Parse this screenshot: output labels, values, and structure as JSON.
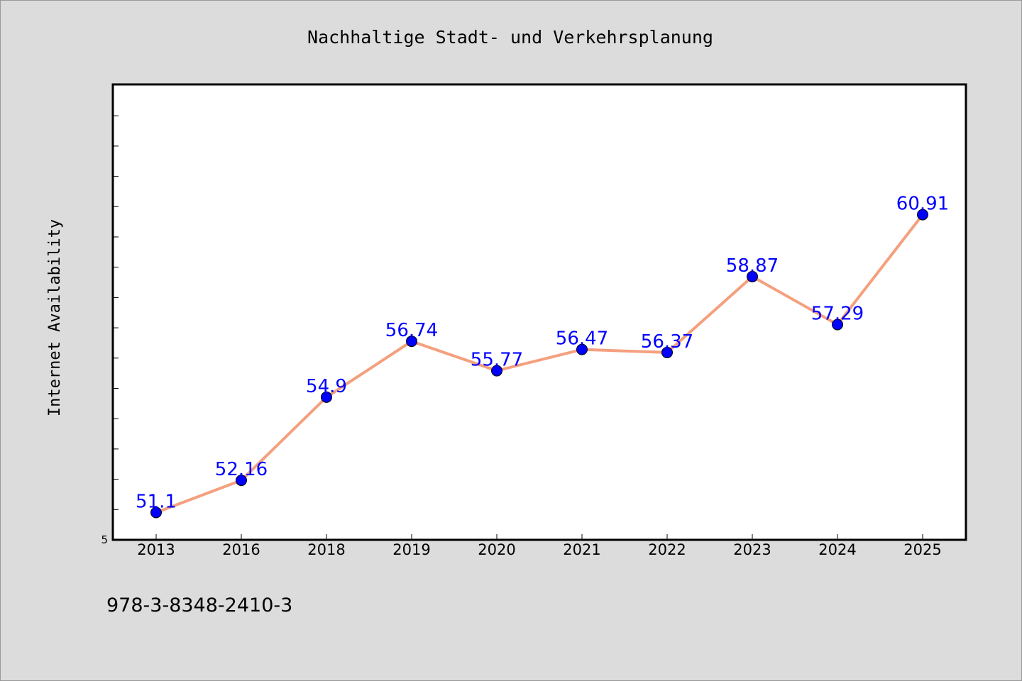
{
  "chart_data": {
    "type": "line",
    "title": "Nachhaltige Stadt- und Verkehrsplanung",
    "xlabel": "",
    "ylabel": "Internet Availability",
    "categories": [
      "2013",
      "2016",
      "2018",
      "2019",
      "2020",
      "2021",
      "2022",
      "2023",
      "2024",
      "2025"
    ],
    "series": [
      {
        "values": [
          51.1,
          52.16,
          54.9,
          56.74,
          55.77,
          56.47,
          56.37,
          58.87,
          57.29,
          60.91
        ],
        "labels": [
          "51.1",
          "52.16",
          "54.9",
          "56.74",
          "55.77",
          "56.47",
          "56.37",
          "58.87",
          "57.29",
          "60.91"
        ]
      }
    ],
    "ylim": [
      50.2,
      65.2
    ],
    "y_tick_label": "5",
    "grid": false,
    "legend": "none",
    "colors": {
      "line": "#f4a07f",
      "marker": "#0000ff",
      "label": "#0000ff",
      "plot_bg": "#ffffff",
      "page_bg": "#dcdcdc"
    }
  },
  "footer": {
    "isbn": "978-3-8348-2410-3"
  }
}
